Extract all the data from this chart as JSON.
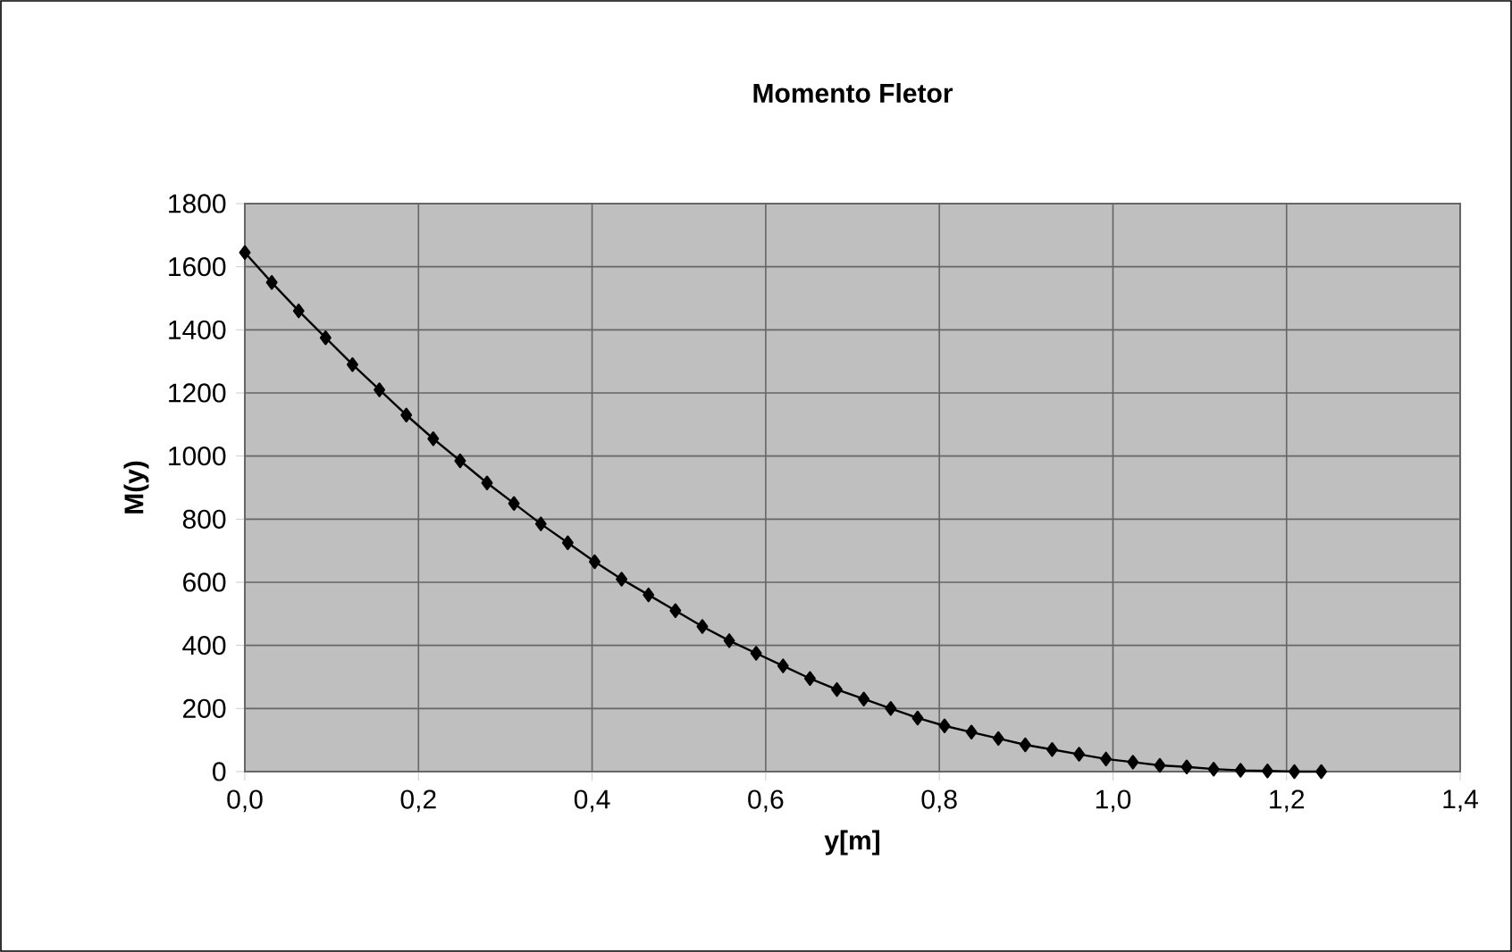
{
  "chart_data": {
    "type": "line",
    "title": "Momento Fletor",
    "xlabel": "y[m]",
    "ylabel": "M(y)",
    "x": [
      0,
      0.031,
      0.062,
      0.093,
      0.124,
      0.155,
      0.186,
      0.217,
      0.248,
      0.279,
      0.31,
      0.341,
      0.372,
      0.403,
      0.434,
      0.465,
      0.496,
      0.527,
      0.558,
      0.589,
      0.62,
      0.651,
      0.682,
      0.713,
      0.744,
      0.775,
      0.806,
      0.837,
      0.868,
      0.899,
      0.93,
      0.961,
      0.992,
      1.023,
      1.054,
      1.085,
      1.116,
      1.147,
      1.178,
      1.209,
      1.24
    ],
    "series": [
      {
        "color": "#000000",
        "values": [
          1645,
          1550,
          1460,
          1375,
          1290,
          1210,
          1130,
          1055,
          985,
          915,
          850,
          785,
          725,
          665,
          610,
          560,
          510,
          460,
          415,
          375,
          335,
          295,
          260,
          230,
          200,
          170,
          145,
          125,
          105,
          85,
          70,
          55,
          40,
          30,
          20,
          15,
          8,
          4,
          2,
          0,
          0
        ]
      }
    ],
    "xlim": [
      0,
      1.4
    ],
    "ylim": [
      0,
      1800
    ],
    "xticks": [
      {
        "value": 0,
        "label": "0,0"
      },
      {
        "value": 0.2,
        "label": "0,2"
      },
      {
        "value": 0.4,
        "label": "0,4"
      },
      {
        "value": 0.6,
        "label": "0,6"
      },
      {
        "value": 0.8,
        "label": "0,8"
      },
      {
        "value": 1.0,
        "label": "1,0"
      },
      {
        "value": 1.2,
        "label": "1,2"
      },
      {
        "value": 1.4,
        "label": "1,4"
      }
    ],
    "yticks": [
      0,
      200,
      400,
      600,
      800,
      1000,
      1200,
      1400,
      1600,
      1800
    ],
    "grid": true,
    "marker": "diamond"
  }
}
